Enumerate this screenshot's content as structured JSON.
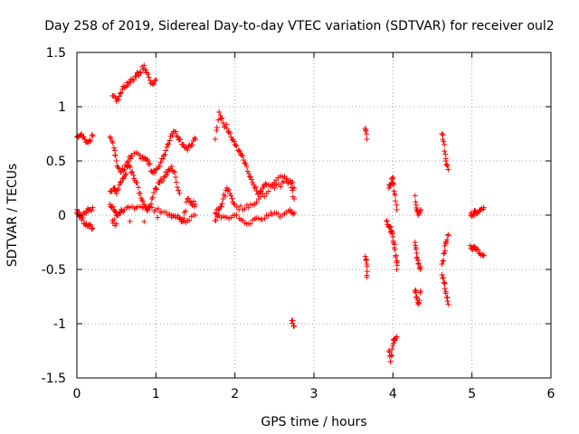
{
  "chart_data": {
    "type": "scatter",
    "title": "Day 258 of 2019, Sidereal Day-to-day VTEC variation (SDTVAR) for receiver oul2",
    "xlabel": "GPS time / hours",
    "ylabel": "SDTVAR / TECUs",
    "xlim": [
      0,
      6
    ],
    "ylim": [
      -1.5,
      1.5
    ],
    "xticks": [
      "0",
      "1",
      "2",
      "3",
      "4",
      "5",
      "6"
    ],
    "yticks": [
      "1.5",
      "1",
      "0.5",
      "0",
      "-0.5",
      "-1",
      "-1.5"
    ],
    "grid": true,
    "marker": "+",
    "color": "#ff0000",
    "series": [
      {
        "name": "SDTVAR",
        "segments": [
          [
            [
              0.0,
              0.72
            ],
            [
              0.05,
              0.74
            ],
            [
              0.1,
              0.7
            ],
            [
              0.15,
              0.68
            ],
            [
              0.2,
              0.73
            ]
          ],
          [
            [
              0.0,
              0.02
            ],
            [
              0.05,
              -0.02
            ],
            [
              0.1,
              -0.08
            ],
            [
              0.15,
              -0.1
            ],
            [
              0.2,
              -0.12
            ]
          ],
          [
            [
              0.0,
              0.05
            ],
            [
              0.05,
              0.0
            ],
            [
              0.1,
              0.02
            ],
            [
              0.15,
              0.05
            ],
            [
              0.2,
              0.07
            ]
          ],
          [
            [
              0.45,
              1.1
            ],
            [
              0.5,
              1.05
            ],
            [
              0.55,
              1.12
            ],
            [
              0.6,
              1.18
            ],
            [
              0.65,
              1.2
            ],
            [
              0.7,
              1.25
            ],
            [
              0.75,
              1.28
            ],
            [
              0.8,
              1.32
            ],
            [
              0.85,
              1.38
            ],
            [
              0.9,
              1.3
            ],
            [
              0.95,
              1.22
            ],
            [
              1.0,
              1.25
            ]
          ],
          [
            [
              0.42,
              0.72
            ],
            [
              0.47,
              0.62
            ],
            [
              0.5,
              0.5
            ],
            [
              0.55,
              0.4
            ],
            [
              0.6,
              0.42
            ],
            [
              0.65,
              0.5
            ],
            [
              0.7,
              0.55
            ],
            [
              0.8,
              0.55
            ],
            [
              0.85,
              0.52
            ],
            [
              0.9,
              0.5
            ],
            [
              0.95,
              0.4
            ],
            [
              1.0,
              0.42
            ],
            [
              1.05,
              0.45
            ],
            [
              1.1,
              0.55
            ],
            [
              1.15,
              0.65
            ],
            [
              1.2,
              0.75
            ],
            [
              1.25,
              0.77
            ],
            [
              1.3,
              0.7
            ],
            [
              1.35,
              0.65
            ],
            [
              1.4,
              0.6
            ],
            [
              1.45,
              0.65
            ],
            [
              1.5,
              0.7
            ]
          ],
          [
            [
              0.42,
              0.22
            ],
            [
              0.47,
              0.25
            ],
            [
              0.5,
              0.2
            ],
            [
              0.55,
              0.3
            ],
            [
              0.6,
              0.35
            ],
            [
              0.65,
              0.45
            ],
            [
              0.7,
              0.4
            ],
            [
              0.75,
              0.3
            ],
            [
              0.8,
              0.2
            ],
            [
              0.85,
              0.1
            ],
            [
              0.9,
              0.05
            ],
            [
              0.95,
              0.15
            ],
            [
              1.0,
              0.25
            ],
            [
              1.05,
              0.3
            ],
            [
              1.1,
              0.35
            ],
            [
              1.15,
              0.4
            ],
            [
              1.2,
              0.45
            ],
            [
              1.25,
              0.35
            ],
            [
              1.3,
              0.2
            ]
          ],
          [
            [
              0.42,
              0.1
            ],
            [
              0.47,
              0.05
            ],
            [
              0.5,
              0.0
            ],
            [
              0.55,
              0.03
            ],
            [
              0.6,
              0.05
            ],
            [
              0.7,
              0.08
            ],
            [
              0.8,
              0.08
            ],
            [
              0.9,
              0.07
            ],
            [
              1.0,
              0.05
            ],
            [
              1.1,
              0.03
            ],
            [
              1.2,
              -0.02
            ],
            [
              1.3,
              -0.03
            ],
            [
              1.35,
              -0.05
            ],
            [
              1.4,
              0.15
            ],
            [
              1.45,
              0.12
            ],
            [
              1.5,
              0.1
            ]
          ],
          [
            [
              0.45,
              -0.05
            ],
            [
              0.5,
              -0.08
            ],
            [
              1.2,
              0.0
            ],
            [
              1.3,
              -0.02
            ],
            [
              1.4,
              -0.05
            ],
            [
              1.5,
              0.0
            ]
          ],
          [
            [
              1.75,
              0.7
            ],
            [
              1.8,
              0.95
            ],
            [
              1.85,
              0.85
            ],
            [
              1.9,
              0.8
            ],
            [
              1.95,
              0.72
            ],
            [
              2.0,
              0.65
            ],
            [
              2.05,
              0.6
            ],
            [
              2.1,
              0.55
            ],
            [
              2.15,
              0.45
            ],
            [
              2.2,
              0.35
            ],
            [
              2.25,
              0.25
            ],
            [
              2.3,
              0.2
            ],
            [
              2.35,
              0.25
            ],
            [
              2.4,
              0.28
            ],
            [
              2.5,
              0.25
            ],
            [
              2.6,
              0.3
            ],
            [
              2.7,
              0.32
            ],
            [
              2.75,
              0.25
            ]
          ],
          [
            [
              1.75,
              0.02
            ],
            [
              1.8,
              0.05
            ],
            [
              1.85,
              0.15
            ],
            [
              1.9,
              0.25
            ],
            [
              1.95,
              0.18
            ],
            [
              2.0,
              0.1
            ],
            [
              2.1,
              0.05
            ],
            [
              2.2,
              0.1
            ],
            [
              2.3,
              0.15
            ],
            [
              2.4,
              0.2
            ],
            [
              2.5,
              0.3
            ],
            [
              2.6,
              0.35
            ],
            [
              2.7,
              0.3
            ],
            [
              2.75,
              0.15
            ]
          ],
          [
            [
              1.75,
              -0.05
            ],
            [
              1.8,
              0.0
            ],
            [
              1.9,
              -0.02
            ],
            [
              2.0,
              0.0
            ],
            [
              2.1,
              -0.05
            ],
            [
              2.2,
              -0.08
            ],
            [
              2.3,
              -0.03
            ],
            [
              2.4,
              0.0
            ],
            [
              2.5,
              0.02
            ],
            [
              2.6,
              0.0
            ],
            [
              2.7,
              0.05
            ],
            [
              2.75,
              0.02
            ]
          ],
          [
            [
              2.72,
              -0.97
            ],
            [
              2.75,
              -1.02
            ]
          ],
          [
            [
              3.65,
              0.8
            ],
            [
              3.67,
              0.7
            ]
          ],
          [
            [
              3.65,
              -0.38
            ],
            [
              3.67,
              -0.45
            ],
            [
              3.67,
              -0.57
            ]
          ],
          [
            [
              3.95,
              0.25
            ],
            [
              3.98,
              0.3
            ],
            [
              4.0,
              0.35
            ],
            [
              4.02,
              0.2
            ],
            [
              4.05,
              0.05
            ]
          ],
          [
            [
              3.92,
              -0.05
            ],
            [
              3.95,
              -0.1
            ],
            [
              3.98,
              -0.15
            ],
            [
              4.0,
              -0.2
            ],
            [
              4.02,
              -0.3
            ],
            [
              4.05,
              -0.42
            ],
            [
              4.05,
              -0.5
            ]
          ],
          [
            [
              3.95,
              -1.25
            ],
            [
              3.97,
              -1.35
            ],
            [
              4.0,
              -1.2
            ],
            [
              4.02,
              -1.15
            ],
            [
              4.05,
              -1.12
            ]
          ],
          [
            [
              4.28,
              0.18
            ],
            [
              4.3,
              0.05
            ],
            [
              4.32,
              0.0
            ],
            [
              4.35,
              0.05
            ]
          ],
          [
            [
              4.28,
              -0.25
            ],
            [
              4.3,
              -0.35
            ],
            [
              4.32,
              -0.45
            ],
            [
              4.35,
              -0.5
            ]
          ],
          [
            [
              4.28,
              -0.7
            ],
            [
              4.3,
              -0.75
            ],
            [
              4.32,
              -0.82
            ],
            [
              4.35,
              -0.7
            ]
          ],
          [
            [
              4.62,
              0.75
            ],
            [
              4.65,
              0.65
            ],
            [
              4.67,
              0.5
            ],
            [
              4.7,
              0.42
            ]
          ],
          [
            [
              4.62,
              -0.45
            ],
            [
              4.65,
              -0.35
            ],
            [
              4.67,
              -0.25
            ],
            [
              4.7,
              -0.18
            ]
          ],
          [
            [
              4.62,
              -0.55
            ],
            [
              4.65,
              -0.62
            ],
            [
              4.67,
              -0.72
            ],
            [
              4.7,
              -0.82
            ]
          ],
          [
            [
              4.98,
              0.0
            ],
            [
              5.02,
              0.02
            ],
            [
              5.05,
              0.03
            ],
            [
              5.1,
              0.05
            ],
            [
              5.15,
              0.07
            ]
          ],
          [
            [
              4.98,
              -0.28
            ],
            [
              5.02,
              -0.3
            ],
            [
              5.05,
              -0.32
            ],
            [
              5.1,
              -0.35
            ],
            [
              5.15,
              -0.37
            ]
          ]
        ]
      }
    ]
  }
}
